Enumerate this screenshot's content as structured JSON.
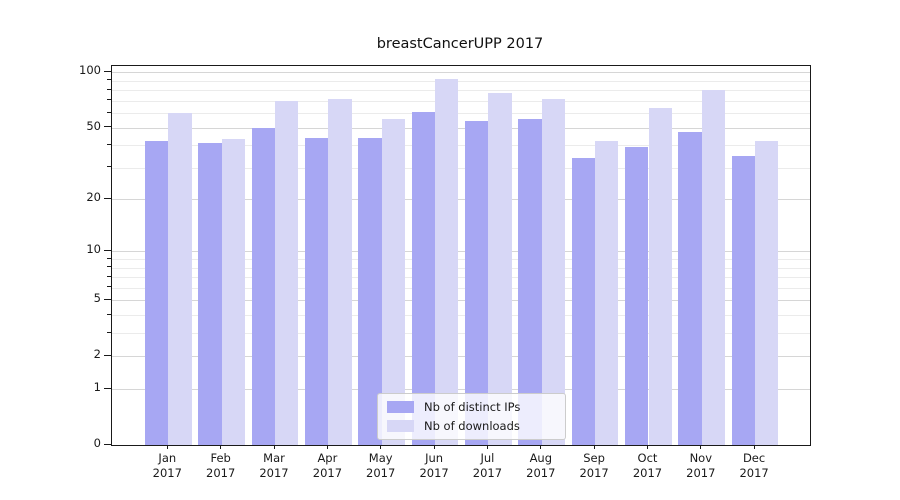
{
  "title": "breastCancerUPP 2017",
  "chart_data": {
    "type": "bar",
    "title": "breastCancerUPP 2017",
    "categories": [
      "Jan",
      "Feb",
      "Mar",
      "Apr",
      "May",
      "Jun",
      "Jul",
      "Aug",
      "Sep",
      "Oct",
      "Nov",
      "Dec"
    ],
    "year": "2017",
    "series": [
      {
        "name": "Nb of distinct IPs",
        "color": "#a7a7f3",
        "values": [
          42,
          41,
          50,
          44,
          44,
          61,
          54,
          56,
          34,
          39,
          47,
          35
        ]
      },
      {
        "name": "Nb of downloads",
        "color": "#d7d7f6",
        "values": [
          60,
          43,
          70,
          72,
          56,
          92,
          77,
          72,
          42,
          64,
          80,
          42
        ]
      }
    ],
    "xlabel": "",
    "ylabel": "",
    "y_scale": "log1p",
    "y_ticks": [
      100,
      50,
      20,
      10,
      5,
      2,
      1,
      0
    ],
    "y_minor_gridlines": [
      3,
      4,
      6,
      7,
      8,
      9,
      30,
      40,
      60,
      70,
      80,
      90
    ],
    "ylim": [
      0,
      110
    ],
    "grid": true,
    "legend_position": "lower center"
  },
  "colors": {
    "major_gridline": "#d6d6d6",
    "minor_gridline": "#ebebeb",
    "axis": "#1a1a1a",
    "text": "#1a1a1a"
  }
}
